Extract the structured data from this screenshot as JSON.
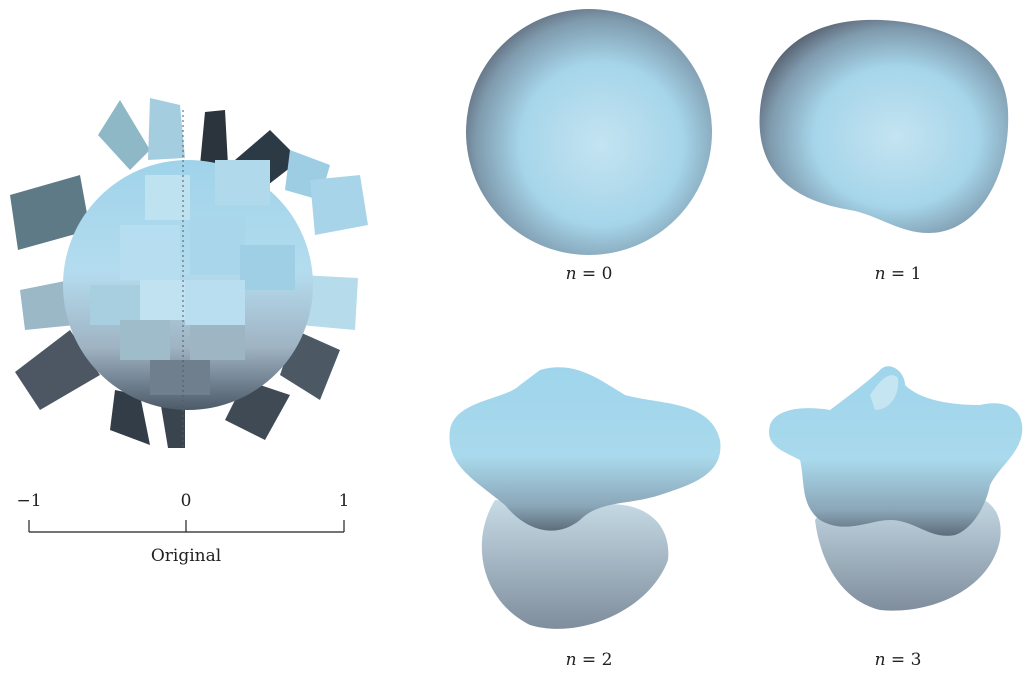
{
  "colors": {
    "light": "#b8e0f0",
    "mid": "#8ec6dc",
    "dark": "#44505c",
    "shadow": "#2f3b46"
  },
  "original": {
    "axis": {
      "ticks": [
        "−1",
        "0",
        "1"
      ],
      "title": "Original"
    }
  },
  "panels": [
    {
      "var": "n",
      "eq": " = ",
      "value": "0"
    },
    {
      "var": "n",
      "eq": " = ",
      "value": "1"
    },
    {
      "var": "n",
      "eq": " = ",
      "value": "2"
    },
    {
      "var": "n",
      "eq": " = ",
      "value": "3"
    }
  ]
}
